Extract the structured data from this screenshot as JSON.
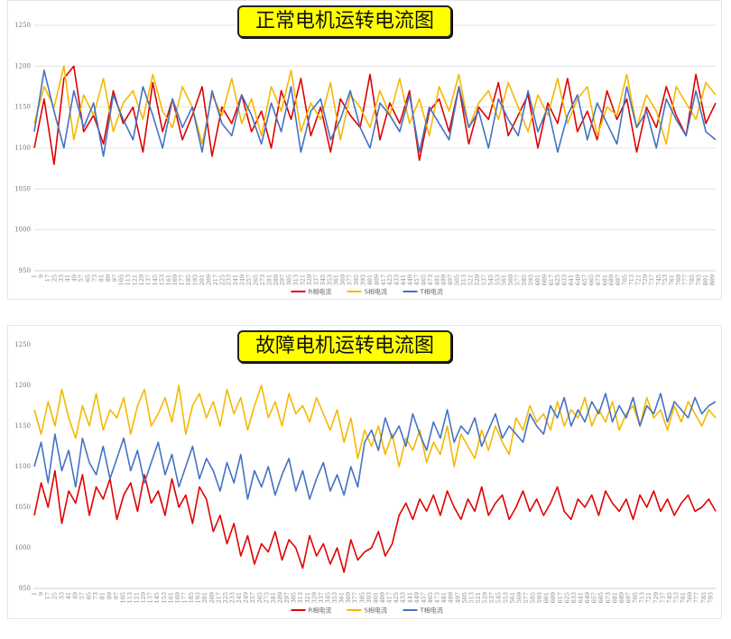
{
  "chart_data": [
    {
      "type": "line",
      "title": "正常电机运转电流图",
      "ylim": [
        950,
        1250
      ],
      "yticks": [
        950,
        1000,
        1050,
        1100,
        1150,
        1200,
        1250
      ],
      "x_range": [
        1,
        813
      ],
      "x_tick_step": 8,
      "legend_position": "bottom",
      "grid": "horizontal",
      "colors": {
        "R": "#e00000",
        "S": "#f5b800",
        "T": "#4472c4"
      },
      "series": [
        {
          "name": "R相电流",
          "color": "#e00000",
          "values": [
            1100,
            1160,
            1080,
            1185,
            1200,
            1120,
            1140,
            1105,
            1170,
            1130,
            1150,
            1095,
            1180,
            1120,
            1160,
            1110,
            1140,
            1175,
            1090,
            1150,
            1130,
            1165,
            1120,
            1145,
            1100,
            1170,
            1135,
            1185,
            1115,
            1150,
            1095,
            1160,
            1140,
            1125,
            1190,
            1110,
            1155,
            1130,
            1170,
            1085,
            1145,
            1160,
            1120,
            1175,
            1105,
            1150,
            1135,
            1180,
            1115,
            1140,
            1165,
            1100,
            1155,
            1130,
            1185,
            1120,
            1145,
            1110,
            1170,
            1135,
            1160,
            1095,
            1150,
            1125,
            1175,
            1140,
            1115,
            1190,
            1130,
            1155
          ]
        },
        {
          "name": "S相电流",
          "color": "#f5b800",
          "values": [
            1130,
            1175,
            1150,
            1200,
            1110,
            1165,
            1140,
            1185,
            1120,
            1155,
            1170,
            1135,
            1190,
            1145,
            1125,
            1175,
            1150,
            1105,
            1165,
            1140,
            1185,
            1130,
            1160,
            1115,
            1175,
            1145,
            1195,
            1120,
            1155,
            1135,
            1180,
            1110,
            1165,
            1150,
            1125,
            1170,
            1140,
            1185,
            1130,
            1160,
            1115,
            1175,
            1145,
            1190,
            1125,
            1155,
            1170,
            1135,
            1180,
            1150,
            1120,
            1165,
            1140,
            1185,
            1130,
            1160,
            1175,
            1115,
            1150,
            1140,
            1190,
            1125,
            1165,
            1145,
            1105,
            1175,
            1155,
            1135,
            1180,
            1165
          ]
        },
        {
          "name": "T相电流",
          "color": "#4472c4",
          "values": [
            1120,
            1195,
            1145,
            1100,
            1170,
            1125,
            1155,
            1090,
            1165,
            1135,
            1110,
            1175,
            1140,
            1100,
            1160,
            1125,
            1150,
            1095,
            1170,
            1130,
            1115,
            1165,
            1140,
            1105,
            1155,
            1120,
            1175,
            1095,
            1145,
            1160,
            1110,
            1135,
            1170,
            1125,
            1100,
            1155,
            1140,
            1120,
            1165,
            1095,
            1150,
            1130,
            1110,
            1175,
            1125,
            1145,
            1100,
            1160,
            1135,
            1115,
            1170,
            1120,
            1150,
            1095,
            1140,
            1165,
            1110,
            1155,
            1130,
            1105,
            1175,
            1125,
            1145,
            1100,
            1160,
            1135,
            1115,
            1170,
            1120,
            1110
          ]
        }
      ]
    },
    {
      "type": "line",
      "title": "故障电机运转电流图",
      "ylim": [
        950,
        1250
      ],
      "yticks": [
        950,
        1000,
        1050,
        1100,
        1150,
        1200,
        1250
      ],
      "x_range": [
        1,
        799
      ],
      "x_tick_step": 8,
      "legend_position": "bottom",
      "grid": "none",
      "colors": {
        "R": "#e00000",
        "S": "#f5b800",
        "T": "#4472c4"
      },
      "series": [
        {
          "name": "R相电流",
          "color": "#e00000",
          "values": [
            1040,
            1080,
            1050,
            1095,
            1030,
            1070,
            1055,
            1090,
            1040,
            1075,
            1060,
            1085,
            1035,
            1065,
            1080,
            1045,
            1090,
            1055,
            1070,
            1040,
            1085,
            1050,
            1065,
            1030,
            1075,
            1060,
            1020,
            1040,
            1005,
            1030,
            990,
            1015,
            980,
            1005,
            995,
            1020,
            985,
            1010,
            1000,
            975,
            1015,
            990,
            1005,
            980,
            1000,
            970,
            1010,
            985,
            995,
            1000,
            1020,
            990,
            1005,
            1040,
            1055,
            1035,
            1060,
            1045,
            1065,
            1040,
            1070,
            1050,
            1035,
            1060,
            1045,
            1075,
            1040,
            1055,
            1065,
            1035,
            1050,
            1070,
            1045,
            1060,
            1040,
            1055,
            1075,
            1045,
            1035,
            1060,
            1050,
            1065,
            1040,
            1070,
            1055,
            1045,
            1060,
            1035,
            1065,
            1050,
            1070,
            1045,
            1060,
            1040,
            1055,
            1065,
            1045,
            1050,
            1060,
            1045
          ]
        },
        {
          "name": "S相电流",
          "color": "#f5b800",
          "values": [
            1170,
            1140,
            1180,
            1150,
            1195,
            1160,
            1135,
            1175,
            1150,
            1190,
            1145,
            1170,
            1160,
            1185,
            1140,
            1175,
            1195,
            1150,
            1165,
            1185,
            1155,
            1200,
            1140,
            1175,
            1190,
            1160,
            1180,
            1150,
            1195,
            1165,
            1185,
            1145,
            1175,
            1200,
            1160,
            1180,
            1150,
            1190,
            1165,
            1175,
            1155,
            1185,
            1165,
            1145,
            1170,
            1130,
            1160,
            1110,
            1145,
            1125,
            1150,
            1115,
            1140,
            1100,
            1135,
            1120,
            1145,
            1105,
            1130,
            1115,
            1150,
            1100,
            1140,
            1125,
            1110,
            1145,
            1120,
            1150,
            1130,
            1115,
            1160,
            1145,
            1175,
            1155,
            1165,
            1145,
            1180,
            1150,
            1170,
            1160,
            1185,
            1150,
            1170,
            1155,
            1180,
            1145,
            1165,
            1175,
            1150,
            1185,
            1160,
            1170,
            1145,
            1175,
            1155,
            1180,
            1165,
            1150,
            1170,
            1160
          ]
        },
        {
          "name": "T相电流",
          "color": "#4472c4",
          "values": [
            1100,
            1130,
            1080,
            1140,
            1095,
            1120,
            1075,
            1135,
            1105,
            1090,
            1125,
            1085,
            1110,
            1135,
            1095,
            1120,
            1080,
            1105,
            1130,
            1090,
            1115,
            1075,
            1100,
            1125,
            1085,
            1110,
            1095,
            1070,
            1105,
            1080,
            1115,
            1060,
            1095,
            1075,
            1100,
            1065,
            1090,
            1110,
            1070,
            1095,
            1060,
            1085,
            1105,
            1070,
            1090,
            1065,
            1100,
            1075,
            1130,
            1145,
            1120,
            1160,
            1135,
            1150,
            1125,
            1165,
            1140,
            1120,
            1155,
            1135,
            1170,
            1130,
            1150,
            1140,
            1160,
            1125,
            1145,
            1165,
            1135,
            1150,
            1140,
            1130,
            1165,
            1150,
            1140,
            1175,
            1160,
            1185,
            1150,
            1170,
            1155,
            1180,
            1165,
            1190,
            1155,
            1175,
            1160,
            1185,
            1150,
            1175,
            1165,
            1190,
            1155,
            1180,
            1170,
            1160,
            1185,
            1165,
            1175,
            1180
          ]
        }
      ]
    }
  ]
}
